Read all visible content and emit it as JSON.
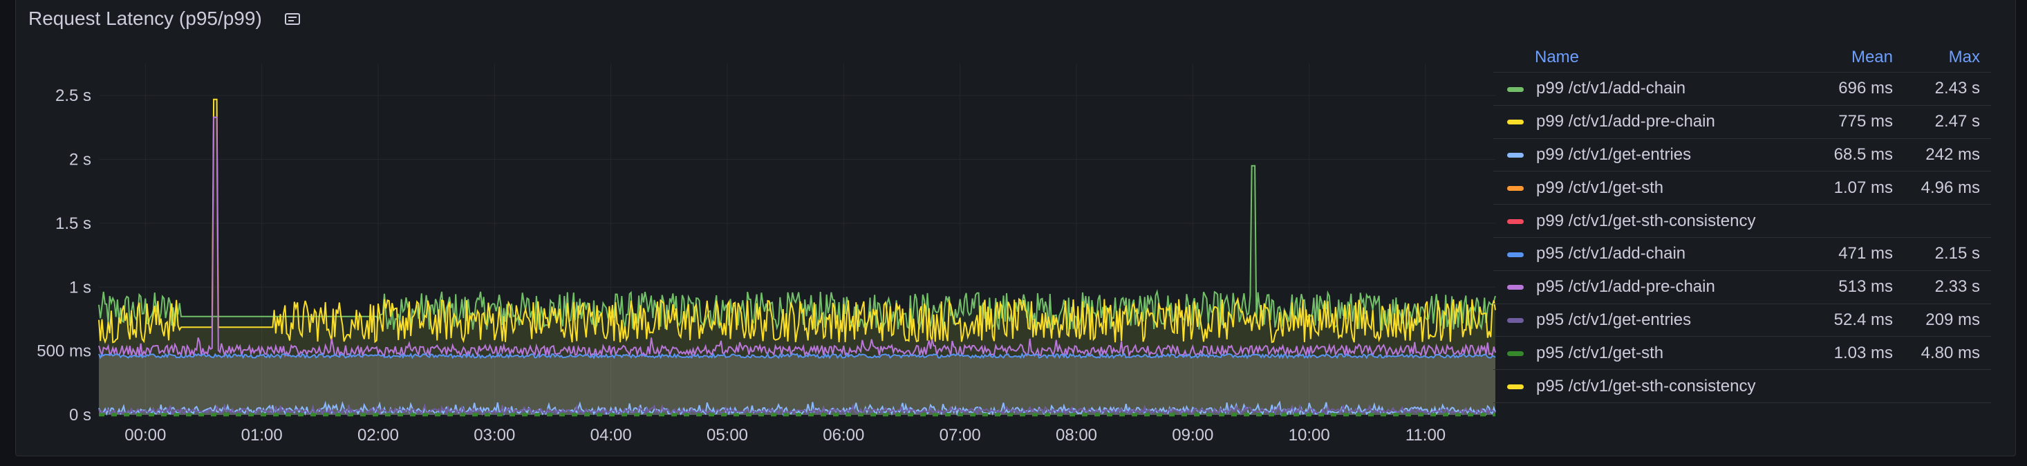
{
  "panel": {
    "title": "Request Latency (p95/p99)",
    "icon": "panel-info-icon"
  },
  "legend": {
    "headers": {
      "name": "Name",
      "mean": "Mean",
      "max": "Max"
    },
    "items": [
      {
        "name": "p99 /ct/v1/add-chain",
        "mean": "696 ms",
        "max": "2.43 s",
        "color": "#73bf69"
      },
      {
        "name": "p99 /ct/v1/add-pre-chain",
        "mean": "775 ms",
        "max": "2.47 s",
        "color": "#fade2a"
      },
      {
        "name": "p99 /ct/v1/get-entries",
        "mean": "68.5 ms",
        "max": "242 ms",
        "color": "#8ab8ff"
      },
      {
        "name": "p99 /ct/v1/get-sth",
        "mean": "1.07 ms",
        "max": "4.96 ms",
        "color": "#ff9830"
      },
      {
        "name": "p99 /ct/v1/get-sth-consistency",
        "mean": "",
        "max": "",
        "color": "#f2495c"
      },
      {
        "name": "p95 /ct/v1/add-chain",
        "mean": "471 ms",
        "max": "2.15 s",
        "color": "#5794f2"
      },
      {
        "name": "p95 /ct/v1/add-pre-chain",
        "mean": "513 ms",
        "max": "2.33 s",
        "color": "#b877d9"
      },
      {
        "name": "p95 /ct/v1/get-entries",
        "mean": "52.4 ms",
        "max": "209 ms",
        "color": "#705da0"
      },
      {
        "name": "p95 /ct/v1/get-sth",
        "mean": "1.03 ms",
        "max": "4.80 ms",
        "color": "#37872d"
      },
      {
        "name": "p95 /ct/v1/get-sth-consistency",
        "mean": "",
        "max": "",
        "color": "#fade2a"
      }
    ]
  },
  "chart_data": {
    "type": "line",
    "yticks": [
      "0 s",
      "500 ms",
      "1 s",
      "1.5 s",
      "2 s",
      "2.5 s"
    ],
    "ytick_values": [
      0,
      0.5,
      1,
      1.5,
      2,
      2.5
    ],
    "xticks": [
      "00:00",
      "01:00",
      "02:00",
      "03:00",
      "04:00",
      "05:00",
      "06:00",
      "07:00",
      "08:00",
      "09:00",
      "10:00",
      "11:00"
    ],
    "xtick_hours": [
      0,
      1,
      2,
      3,
      4,
      5,
      6,
      7,
      8,
      9,
      10,
      11
    ],
    "x_range_hours": [
      -0.4,
      11.6
    ],
    "y_range_seconds": [
      0,
      2.75
    ],
    "grid": true,
    "legend_placement": "right (table)",
    "series_summary": [
      {
        "name": "p99 /ct/v1/add-chain",
        "baseline_s": 0.8,
        "noise_s": 0.15,
        "spike": {
          "hour": 9.52,
          "value_s": 1.95
        }
      },
      {
        "name": "p99 /ct/v1/add-pre-chain",
        "baseline_s": 0.72,
        "noise_s": 0.16,
        "spike": {
          "hour": 0.6,
          "value_s": 2.47
        }
      },
      {
        "name": "p95 /ct/v1/add-pre-chain",
        "baseline_s": 0.5,
        "noise_s": 0.05,
        "spike": {
          "hour": 0.6,
          "value_s": 2.33
        }
      },
      {
        "name": "p95 /ct/v1/add-chain",
        "baseline_s": 0.46,
        "noise_s": 0.02
      },
      {
        "name": "p99 /ct/v1/get-entries",
        "baseline_s": 0.05,
        "noise_s": 0.06,
        "max_s": 0.242
      },
      {
        "name": "p95 /ct/v1/get-entries",
        "baseline_s": 0.04,
        "noise_s": 0.05,
        "max_s": 0.209
      },
      {
        "name": "p99 /ct/v1/get-sth",
        "baseline_s": 0.001
      },
      {
        "name": "p95 /ct/v1/get-sth",
        "baseline_s": 0.001
      }
    ]
  }
}
